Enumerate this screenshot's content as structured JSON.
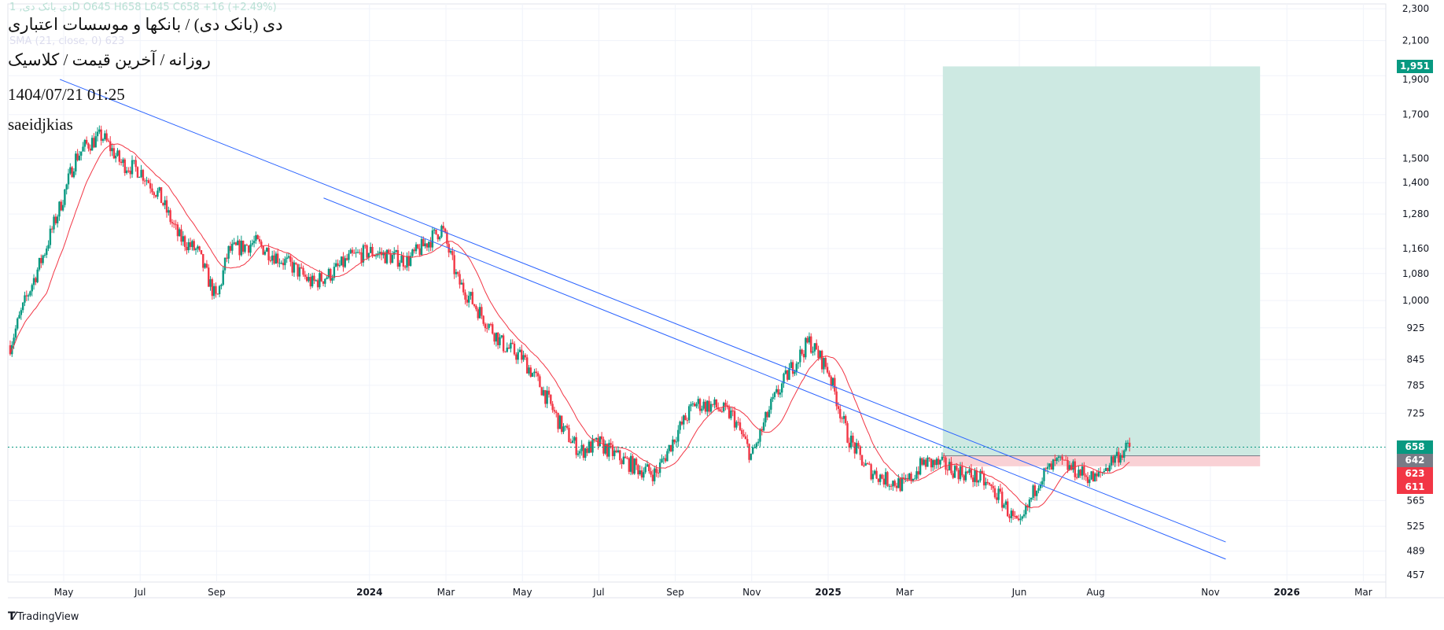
{
  "header": {
    "ohlc_legend": "دی بانک دی, 1D  O645  H658  L645  C658  +16 (+2.49%)",
    "ma_legend": "SMA (21, close, 0)  623",
    "title": "دی (بانک دی) / بانکها و موسسات اعتباری",
    "subtitle": "روزانه / آخرین قیمت / کلاسیک",
    "datetime": "1404/07/21 01:25",
    "author": "saeidjkias"
  },
  "colors": {
    "up": "#089981",
    "down": "#f23645",
    "ma": "#f23645",
    "trend": "#2962ff",
    "target_zone": "#cde9e2",
    "stop_zone": "#f9d1d5"
  },
  "price_axis": {
    "ticks": [
      "2,300",
      "2,100",
      "1,900",
      "1,700",
      "1,500",
      "1,400",
      "1,280",
      "1,160",
      "1,080",
      "1,000",
      "925",
      "845",
      "785",
      "725",
      "565",
      "525",
      "489",
      "457"
    ],
    "tick_values": [
      2300,
      2100,
      1900,
      1700,
      1500,
      1400,
      1280,
      1160,
      1080,
      1000,
      925,
      845,
      785,
      725,
      565,
      525,
      489,
      457
    ],
    "badges": [
      {
        "label": "1,951",
        "value": 1951,
        "color": "#089981"
      },
      {
        "label": "658",
        "value": 658,
        "color": "#089981"
      },
      {
        "label": "642",
        "value": 642,
        "color": "#787b86"
      },
      {
        "label": "623",
        "value": 623,
        "color": "#f23645"
      },
      {
        "label": "611",
        "value": 611,
        "color": "#f23645"
      }
    ]
  },
  "time_axis": {
    "labels": [
      "May",
      "Jul",
      "Sep",
      "2024",
      "Mar",
      "May",
      "Jul",
      "Sep",
      "Nov",
      "2025",
      "Mar",
      "Jun",
      "Aug",
      "Nov",
      "2026",
      "Mar"
    ],
    "months": [
      0,
      2,
      4,
      8,
      10,
      12,
      14,
      16,
      18,
      20,
      22,
      25,
      27,
      30,
      32,
      34
    ],
    "bold": [
      "2024",
      "2025",
      "2026"
    ]
  },
  "chart_data": {
    "type": "candlestick",
    "scale": "log",
    "x_unit": "months since May 2023",
    "close_path": [
      [
        -1.4,
        880
      ],
      [
        -1.0,
        1000
      ],
      [
        -0.5,
        1150
      ],
      [
        0,
        1350
      ],
      [
        0.3,
        1500
      ],
      [
        0.6,
        1560
      ],
      [
        1,
        1600
      ],
      [
        1.5,
        1480
      ],
      [
        2,
        1450
      ],
      [
        2.5,
        1350
      ],
      [
        3,
        1200
      ],
      [
        3.5,
        1150
      ],
      [
        4,
        1000
      ],
      [
        4.3,
        1150
      ],
      [
        5,
        1180
      ],
      [
        6,
        1100
      ],
      [
        6.5,
        1050
      ],
      [
        7,
        1080
      ],
      [
        7.5,
        1130
      ],
      [
        8,
        1150
      ],
      [
        9,
        1120
      ],
      [
        9.9,
        1230
      ],
      [
        10.3,
        1060
      ],
      [
        11,
        950
      ],
      [
        11.5,
        880
      ],
      [
        12,
        850
      ],
      [
        12.5,
        780
      ],
      [
        13,
        700
      ],
      [
        13.5,
        650
      ],
      [
        14,
        665
      ],
      [
        14.5,
        640
      ],
      [
        15,
        620
      ],
      [
        15.5,
        610
      ],
      [
        16,
        680
      ],
      [
        16.5,
        745
      ],
      [
        17,
        740
      ],
      [
        17.5,
        720
      ],
      [
        18,
        640
      ],
      [
        18.5,
        740
      ],
      [
        19,
        820
      ],
      [
        19.5,
        890
      ],
      [
        20,
        820
      ],
      [
        20.5,
        680
      ],
      [
        21,
        620
      ],
      [
        21.5,
        600
      ],
      [
        22,
        590
      ],
      [
        22.5,
        630
      ],
      [
        23,
        625
      ],
      [
        24,
        600
      ],
      [
        24.5,
        570
      ],
      [
        25,
        520
      ],
      [
        25.5,
        600
      ],
      [
        26,
        630
      ],
      [
        27,
        600
      ],
      [
        27.5,
        640
      ],
      [
        27.9,
        658
      ]
    ],
    "last_price": 658,
    "sma_period": 21,
    "trendlines": [
      [
        [
          -0.1,
          1880
        ],
        [
          30.4,
          502
        ]
      ],
      [
        [
          6.8,
          1340
        ],
        [
          30.4,
          478
        ]
      ]
    ],
    "position": {
      "entry": 642,
      "target": 1951,
      "stop": 623,
      "start_month": 23.0,
      "end_month": 31.3
    }
  },
  "footer": {
    "brand": "TradingView"
  }
}
